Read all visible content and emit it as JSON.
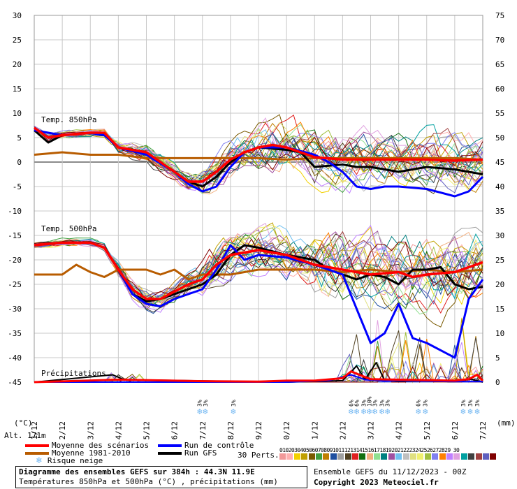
{
  "chart_data": {
    "type": "line",
    "title": "Diagramme des ensembles GEFS sur 384h : 44.3N 11.9E",
    "subtitle": "Températures 850hPa et 500hPa (°C) , précipitations (mm)",
    "left_axis": {
      "unit": "(°C)",
      "ylim": [
        -45,
        30
      ],
      "ticks": [
        30,
        25,
        20,
        15,
        10,
        5,
        0,
        -5,
        -10,
        -15,
        -20,
        -25,
        -30,
        -35,
        -40,
        -45
      ]
    },
    "right_axis": {
      "unit": "(mm)",
      "ylim": [
        0,
        75
      ],
      "ticks": [
        75,
        70,
        65,
        60,
        55,
        50,
        45,
        40,
        35,
        30,
        25,
        20,
        15,
        10,
        5,
        0
      ]
    },
    "x": {
      "type": "date",
      "range": [
        "2023-12-11T00",
        "2023-12-27T00"
      ],
      "tick_labels": [
        "11/12",
        "12/12",
        "13/12",
        "14/12",
        "15/12",
        "16/12",
        "17/12",
        "18/12",
        "19/12",
        "20/12",
        "21/12",
        "22/12",
        "23/12",
        "24/12",
        "25/12",
        "26/12",
        "27/12"
      ]
    },
    "grid": true,
    "altitude": "Alt. 171m",
    "panel_labels": {
      "t850": "Temp. 850hPa",
      "t500": "Temp. 500hPa",
      "precip": "Précipitations"
    },
    "series": [
      {
        "name": "Moyenne des scénarios",
        "color": "#ff0000",
        "group": "t850",
        "values": [
          [
            0,
            7
          ],
          [
            0.5,
            5
          ],
          [
            1,
            5.5
          ],
          [
            2,
            6
          ],
          [
            2.5,
            6
          ],
          [
            3,
            3
          ],
          [
            3.5,
            2.5
          ],
          [
            4,
            2
          ],
          [
            5,
            -2
          ],
          [
            5.5,
            -4
          ],
          [
            6,
            -4
          ],
          [
            6.5,
            -2
          ],
          [
            7,
            0.5
          ],
          [
            7.5,
            2
          ],
          [
            8,
            3
          ],
          [
            8.5,
            3.5
          ],
          [
            9,
            3
          ],
          [
            9.5,
            2
          ],
          [
            10,
            1
          ],
          [
            11,
            0.5
          ],
          [
            12,
            0.5
          ],
          [
            13,
            0.5
          ],
          [
            14,
            0.5
          ],
          [
            15,
            0.3
          ],
          [
            16,
            0.5
          ]
        ]
      },
      {
        "name": "Moyenne des scénarios",
        "color": "#ff0000",
        "group": "t500",
        "values": [
          [
            0,
            -17
          ],
          [
            1,
            -16.5
          ],
          [
            2,
            -16.5
          ],
          [
            2.5,
            -17.5
          ],
          [
            3,
            -22
          ],
          [
            3.5,
            -26
          ],
          [
            4,
            -28
          ],
          [
            4.5,
            -28
          ],
          [
            5,
            -26.5
          ],
          [
            5.5,
            -25
          ],
          [
            6,
            -24
          ],
          [
            6.5,
            -21
          ],
          [
            7,
            -19
          ],
          [
            8,
            -18
          ],
          [
            9,
            -19
          ],
          [
            10,
            -21
          ],
          [
            10.5,
            -21.5
          ],
          [
            11,
            -22
          ],
          [
            12,
            -23
          ],
          [
            13,
            -22.5
          ],
          [
            13.5,
            -23.5
          ],
          [
            14,
            -23
          ],
          [
            15,
            -22.5
          ],
          [
            16,
            -20.5
          ]
        ]
      },
      {
        "name": "Moyenne 1981-2010",
        "color": "#b85c00",
        "group": "t850",
        "values": [
          [
            0,
            1.5
          ],
          [
            1,
            2
          ],
          [
            2,
            1.5
          ],
          [
            3,
            1.5
          ],
          [
            4,
            0.8
          ],
          [
            5,
            0.8
          ],
          [
            6,
            0.8
          ],
          [
            7,
            0.8
          ],
          [
            8,
            0.8
          ],
          [
            9,
            0.5
          ],
          [
            10,
            0.8
          ],
          [
            11,
            0.8
          ],
          [
            12,
            0.8
          ],
          [
            13,
            0.8
          ],
          [
            14,
            0.8
          ],
          [
            15,
            0.8
          ],
          [
            16,
            0.5
          ]
        ]
      },
      {
        "name": "Moyenne 1981-2010",
        "color": "#b85c00",
        "group": "t500",
        "values": [
          [
            0,
            -23
          ],
          [
            1,
            -23
          ],
          [
            1.5,
            -21
          ],
          [
            2,
            -22.5
          ],
          [
            2.5,
            -23.5
          ],
          [
            3,
            -22
          ],
          [
            4,
            -22
          ],
          [
            4.5,
            -23
          ],
          [
            5,
            -22
          ],
          [
            5.5,
            -24
          ],
          [
            6,
            -23
          ],
          [
            7,
            -23
          ],
          [
            8,
            -22
          ],
          [
            9,
            -22
          ],
          [
            10,
            -22
          ],
          [
            11,
            -22.5
          ],
          [
            12,
            -22
          ],
          [
            13,
            -22.5
          ],
          [
            14,
            -22
          ],
          [
            15,
            -22.5
          ],
          [
            16,
            -22
          ]
        ]
      },
      {
        "name": "Run de contrôle",
        "color": "#0000ff",
        "group": "t850",
        "values": [
          [
            0,
            6.5
          ],
          [
            1,
            5.5
          ],
          [
            2,
            6
          ],
          [
            2.5,
            5.5
          ],
          [
            3,
            3
          ],
          [
            4,
            1.5
          ],
          [
            5,
            -2
          ],
          [
            5.5,
            -4.5
          ],
          [
            6,
            -6
          ],
          [
            6.5,
            -5
          ],
          [
            7,
            -1
          ],
          [
            7.5,
            2
          ],
          [
            8,
            3
          ],
          [
            9,
            3
          ],
          [
            10,
            1.5
          ],
          [
            10.5,
            0
          ],
          [
            11,
            -2
          ],
          [
            11.5,
            -5
          ],
          [
            12,
            -5.5
          ],
          [
            12.5,
            -5
          ],
          [
            13,
            -5
          ],
          [
            14,
            -5.5
          ],
          [
            15,
            -7
          ],
          [
            15.5,
            -6
          ],
          [
            16,
            -3
          ]
        ]
      },
      {
        "name": "Run de contrôle",
        "color": "#0000ff",
        "group": "t500",
        "values": [
          [
            0,
            -17
          ],
          [
            1,
            -16.5
          ],
          [
            2,
            -16.5
          ],
          [
            2.5,
            -17.5
          ],
          [
            3,
            -22
          ],
          [
            3.5,
            -27
          ],
          [
            4,
            -29
          ],
          [
            4.5,
            -29.5
          ],
          [
            5,
            -28
          ],
          [
            5.5,
            -27
          ],
          [
            6,
            -26
          ],
          [
            6.5,
            -22
          ],
          [
            7,
            -17
          ],
          [
            7.5,
            -20
          ],
          [
            8,
            -19
          ],
          [
            9,
            -19.5
          ],
          [
            10,
            -21
          ],
          [
            11,
            -23
          ],
          [
            11.5,
            -30
          ],
          [
            12,
            -37
          ],
          [
            12.5,
            -35
          ],
          [
            13,
            -29
          ],
          [
            13.5,
            -36
          ],
          [
            14,
            -37
          ],
          [
            15,
            -40
          ],
          [
            15.5,
            -28
          ],
          [
            16,
            -24
          ]
        ]
      },
      {
        "name": "Run GFS",
        "color": "#000000",
        "group": "t850",
        "values": [
          [
            0,
            6.5
          ],
          [
            0.5,
            4
          ],
          [
            1,
            5.5
          ],
          [
            2,
            6
          ],
          [
            2.5,
            5.5
          ],
          [
            3,
            3
          ],
          [
            4,
            2
          ],
          [
            5,
            -2
          ],
          [
            5.5,
            -4
          ],
          [
            6,
            -5
          ],
          [
            6.5,
            -3
          ],
          [
            7,
            0
          ],
          [
            7.5,
            2
          ],
          [
            8,
            3
          ],
          [
            9,
            2.5
          ],
          [
            9.5,
            2
          ],
          [
            10,
            -1
          ],
          [
            11,
            -0.5
          ],
          [
            11.5,
            -1
          ],
          [
            12,
            -1
          ],
          [
            13,
            -2
          ],
          [
            14,
            -1
          ],
          [
            15,
            -1.5
          ],
          [
            16,
            -2.5
          ]
        ]
      },
      {
        "name": "Run GFS",
        "color": "#000000",
        "group": "t500",
        "values": [
          [
            0,
            -17
          ],
          [
            1,
            -16.5
          ],
          [
            2,
            -16.5
          ],
          [
            2.5,
            -17.5
          ],
          [
            3,
            -22
          ],
          [
            3.5,
            -27
          ],
          [
            4,
            -28.5
          ],
          [
            4.5,
            -28
          ],
          [
            5,
            -27
          ],
          [
            5.5,
            -26
          ],
          [
            6,
            -25
          ],
          [
            6.5,
            -23
          ],
          [
            7,
            -19
          ],
          [
            7.5,
            -17
          ],
          [
            8,
            -17.5
          ],
          [
            9,
            -19
          ],
          [
            10,
            -20
          ],
          [
            10.5,
            -22
          ],
          [
            11,
            -23
          ],
          [
            11.5,
            -24
          ],
          [
            12,
            -23
          ],
          [
            12.5,
            -23.5
          ],
          [
            13,
            -25
          ],
          [
            13.5,
            -22
          ],
          [
            14,
            -22
          ],
          [
            14.5,
            -21.5
          ],
          [
            15,
            -25
          ],
          [
            15.5,
            -26
          ],
          [
            16,
            -25.5
          ]
        ]
      }
    ],
    "precipitation": {
      "unit": "mm",
      "mean": [
        [
          0,
          0
        ],
        [
          3,
          0.5
        ],
        [
          6,
          0.2
        ],
        [
          8,
          0.1
        ],
        [
          9,
          0.3
        ],
        [
          10,
          0.3
        ],
        [
          11,
          0.8
        ],
        [
          11.3,
          2.2
        ],
        [
          11.6,
          1.5
        ],
        [
          12,
          0.6
        ],
        [
          13,
          0.5
        ],
        [
          14,
          0.4
        ],
        [
          15,
          0.3
        ],
        [
          15.5,
          0.6
        ],
        [
          15.8,
          1.5
        ],
        [
          16,
          0.3
        ]
      ],
      "control": [
        [
          0,
          0
        ],
        [
          9,
          0
        ],
        [
          10.5,
          0.3
        ],
        [
          11.3,
          1.5
        ],
        [
          11.8,
          0.5
        ],
        [
          12.5,
          0.2
        ],
        [
          13,
          0.3
        ],
        [
          14,
          0.2
        ],
        [
          15,
          0.1
        ],
        [
          16,
          0.1
        ]
      ],
      "gfs": [
        [
          0,
          0
        ],
        [
          2.8,
          1.5
        ],
        [
          3.2,
          0.5
        ],
        [
          9,
          0
        ],
        [
          11,
          0.3
        ],
        [
          11.5,
          3.3
        ],
        [
          11.8,
          0.5
        ],
        [
          12.2,
          4
        ],
        [
          12.5,
          0.3
        ],
        [
          13,
          0.2
        ],
        [
          14,
          0.2
        ],
        [
          15,
          0.1
        ],
        [
          15.6,
          0.6
        ],
        [
          16,
          0
        ]
      ]
    },
    "snow_risk": [
      {
        "day": 5.9,
        "pct": "3%"
      },
      {
        "day": 6.1,
        "pct": "3%"
      },
      {
        "day": 7.1,
        "pct": "3%"
      },
      {
        "day": 11.3,
        "pct": "6%"
      },
      {
        "day": 11.5,
        "pct": "6%"
      },
      {
        "day": 11.75,
        "pct": "3%"
      },
      {
        "day": 11.95,
        "pct": "10%"
      },
      {
        "day": 12.15,
        "pct": "3%"
      },
      {
        "day": 12.4,
        "pct": "3%"
      },
      {
        "day": 12.6,
        "pct": "3%"
      },
      {
        "day": 13.7,
        "pct": "6%"
      },
      {
        "day": 13.95,
        "pct": "3%"
      },
      {
        "day": 15.3,
        "pct": "3%"
      },
      {
        "day": 15.55,
        "pct": "3%"
      },
      {
        "day": 15.8,
        "pct": "3%"
      }
    ]
  },
  "legend": {
    "mean_scen": "Moyenne des scénarios",
    "mean_clim": "Moyenne 1981-2010",
    "snow": "Risque neige",
    "control": "Run de contrôle",
    "gfs": "Run GFS",
    "perts_label": "30 Perts.",
    "perts_numbers": "0102030405060708091011121314151617181920212223242526272829 30",
    "perts_colors": [
      "#f29999",
      "#ffb0b0",
      "#f2d000",
      "#c0a000",
      "#7a5a00",
      "#40a040",
      "#c08000",
      "#2050a0",
      "#a0a0a0",
      "#504020",
      "#e02020",
      "#107010",
      "#f2b080",
      "#90e090",
      "#008080",
      "#a050a0",
      "#70c0f0",
      "#c0c0c0",
      "#e0e080",
      "#f0f070",
      "#a0c040",
      "#8080f0",
      "#ff8000",
      "#c080ff",
      "#e0a0e0",
      "#00a0a0",
      "#404040",
      "#a04040",
      "#6060c0",
      "#800000"
    ]
  },
  "footer": {
    "title_line": "Diagramme des ensembles GEFS sur 384h : 44.3N 11.9E",
    "subtitle_line": "Températures 850hPa et 500hPa (°C) , précipitations (mm)",
    "run_info": "Ensemble GEFS du 11/12/2023 - 00Z",
    "copyright": "Copyright 2023 Meteociel.fr"
  }
}
